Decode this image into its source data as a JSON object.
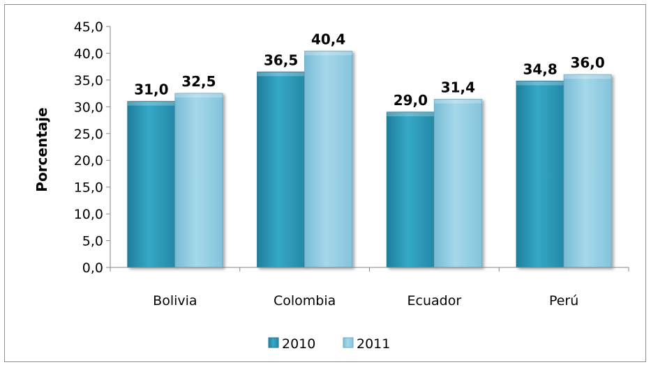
{
  "chart_data": {
    "type": "bar",
    "categories": [
      "Bolivia",
      "Colombia",
      "Ecuador",
      "Perú"
    ],
    "series": [
      {
        "name": "2010",
        "values": [
          31.0,
          36.5,
          29.0,
          34.8
        ],
        "labels": [
          "31,0",
          "36,5",
          "29,0",
          "34,8"
        ],
        "color": "#2e9cbc"
      },
      {
        "name": "2011",
        "values": [
          32.5,
          40.4,
          31.4,
          36.0
        ],
        "labels": [
          "32,5",
          "40,4",
          "31,4",
          "36,0"
        ],
        "color": "#92cde2"
      }
    ],
    "title": "",
    "xlabel": "",
    "ylabel": "Porcentaje",
    "ylim": [
      0,
      45
    ],
    "yticks": [
      0,
      5,
      10,
      15,
      20,
      25,
      30,
      35,
      40,
      45
    ],
    "ytick_labels": [
      "0,0",
      "5,0",
      "10,0",
      "15,0",
      "20,0",
      "25,0",
      "30,0",
      "35,0",
      "40,0",
      "45,0"
    ],
    "grid": false,
    "legend_position": "bottom"
  }
}
